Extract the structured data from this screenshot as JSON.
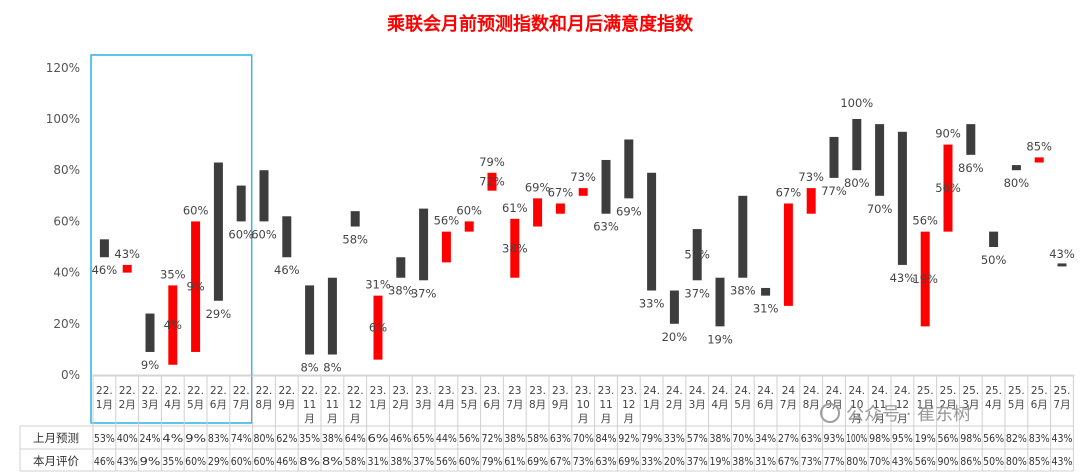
{
  "chart_data": {
    "type": "bar",
    "title": "乘联会月前预测指数和月后满意度指数",
    "ylim": [
      0,
      120
    ],
    "yticks": [
      "0%",
      "20%",
      "40%",
      "60%",
      "80%",
      "100%",
      "120%"
    ],
    "categories": [
      [
        "22.",
        "1月"
      ],
      [
        "22.",
        "2月"
      ],
      [
        "22.",
        "3月"
      ],
      [
        "22.",
        "4月"
      ],
      [
        "22.",
        "5月"
      ],
      [
        "22.",
        "6月"
      ],
      [
        "22.",
        "7月"
      ],
      [
        "22.",
        "8月"
      ],
      [
        "22.",
        "9月"
      ],
      [
        "22.",
        "11",
        "月"
      ],
      [
        "22.",
        "11",
        "月"
      ],
      [
        "22.",
        "12",
        "月"
      ],
      [
        "23.",
        "1月"
      ],
      [
        "23.",
        "2月"
      ],
      [
        "23.",
        "3月"
      ],
      [
        "23.",
        "4月"
      ],
      [
        "23.",
        "5月"
      ],
      [
        "23.",
        "6月"
      ],
      [
        "23",
        "7月"
      ],
      [
        "23.",
        "8月"
      ],
      [
        "23.",
        "9月"
      ],
      [
        "23.",
        "10",
        "月"
      ],
      [
        "23.",
        "11",
        "月"
      ],
      [
        "23.",
        "12",
        "月"
      ],
      [
        "24.",
        "1月"
      ],
      [
        "24.",
        "2月"
      ],
      [
        "24.",
        "3月"
      ],
      [
        "24.",
        "4月"
      ],
      [
        "24.",
        "5月"
      ],
      [
        "24.",
        "6月"
      ],
      [
        "24",
        "7月"
      ],
      [
        "24.",
        "8月"
      ],
      [
        "24.",
        "9月"
      ],
      [
        "24.",
        "10",
        "月"
      ],
      [
        "24.",
        "11",
        "月"
      ],
      [
        "24.",
        "12",
        "月"
      ],
      [
        "25.",
        "1月"
      ],
      [
        "25.",
        "2月"
      ],
      [
        "25.",
        "3月"
      ],
      [
        "25.",
        "4月"
      ],
      [
        "25.",
        "5月"
      ],
      [
        "25.",
        "6月"
      ],
      [
        "25.",
        "7月"
      ]
    ],
    "series": [
      {
        "name": "上月预测",
        "values": [
          53,
          40,
          24,
          4,
          9,
          83,
          74,
          80,
          62,
          35,
          38,
          64,
          6,
          46,
          65,
          44,
          56,
          72,
          38,
          58,
          63,
          70,
          84,
          92,
          79,
          33,
          57,
          38,
          70,
          34,
          27,
          63,
          93,
          100,
          98,
          95,
          19,
          56,
          98,
          56,
          82,
          83,
          43
        ]
      },
      {
        "name": "本月评价",
        "values": [
          46,
          43,
          9,
          35,
          60,
          29,
          60,
          60,
          46,
          8,
          8,
          58,
          31,
          38,
          37,
          56,
          60,
          79,
          61,
          69,
          67,
          73,
          63,
          69,
          33,
          20,
          37,
          19,
          38,
          31,
          67,
          73,
          77,
          80,
          70,
          43,
          56,
          90,
          86,
          50,
          80,
          85,
          43
        ]
      }
    ],
    "point_labels": [
      "46%",
      "43%",
      "9%",
      "35%",
      "60%",
      "29%",
      "60%",
      "60%",
      "46%",
      "8%",
      "8%",
      "58%",
      "31%",
      "38%",
      "37%",
      "56%",
      "60%",
      "79%",
      "61%",
      "69%",
      "67%",
      "73%",
      "63%",
      "69%",
      "33%",
      "20%",
      "37%",
      "19%",
      "38%",
      "31%",
      "67%",
      "73%",
      "77%",
      "80%",
      "70%",
      "43%",
      "56%",
      "90%",
      "86%",
      "50%",
      "80%",
      "85%",
      "43%"
    ],
    "bar_inner_labels": [
      "",
      "",
      "",
      "4%",
      "9%",
      "",
      "",
      "",
      "",
      "",
      "",
      "",
      "6%",
      "",
      "",
      "",
      "",
      "72%",
      "38%",
      "",
      "",
      "",
      "",
      "",
      "",
      "",
      "57%",
      "",
      "",
      "",
      "",
      "",
      "",
      "",
      "",
      "",
      "19%",
      "56%",
      "",
      "",
      "",
      "",
      ""
    ],
    "highlight_label": "100%",
    "increase_color": "#ff0000",
    "decrease_color": "#3d3d3d",
    "group_frame_color": "#35b8e8",
    "title_color": "#ff0000",
    "highlight_label_color": "#ff0000"
  },
  "table": {
    "row_labels": [
      "上月预测",
      "本月评价"
    ],
    "forecast": [
      "53%",
      "40%",
      "24%",
      "4%",
      "9%",
      "83%",
      "74%",
      "80%",
      "62%",
      "35%",
      "38%",
      "64%",
      "6%",
      "46%",
      "65%",
      "44%",
      "56%",
      "72%",
      "38%",
      "58%",
      "63%",
      "70%",
      "84%",
      "92%",
      "79%",
      "33%",
      "57%",
      "38%",
      "70%",
      "34%",
      "27%",
      "63%",
      "93%",
      "100%",
      "98%",
      "95%",
      "19%",
      "56%",
      "98%",
      "56%",
      "82%",
      "83%",
      "43%"
    ],
    "evaluation": [
      "46%",
      "43%",
      "9%",
      "35%",
      "60%",
      "29%",
      "60%",
      "60%",
      "46%",
      "8%",
      "8%",
      "58%",
      "31%",
      "38%",
      "37%",
      "56%",
      "60%",
      "79%",
      "61%",
      "69%",
      "67%",
      "73%",
      "63%",
      "69%",
      "33%",
      "20%",
      "37%",
      "19%",
      "38%",
      "31%",
      "67%",
      "73%",
      "77%",
      "80%",
      "70%",
      "43%",
      "56%",
      "90%",
      "86%",
      "50%",
      "80%",
      "85%",
      "43%"
    ]
  },
  "watermark": "公众号 · 崔东树"
}
